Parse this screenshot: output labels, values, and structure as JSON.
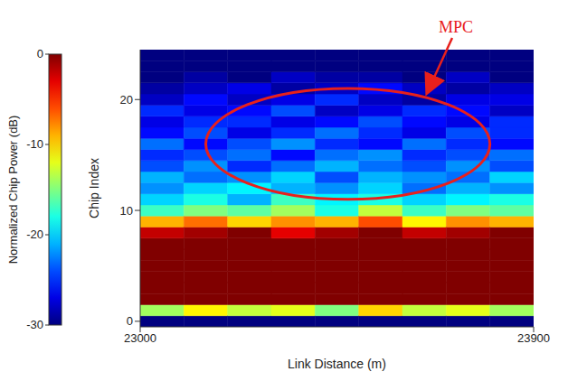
{
  "chart_data": {
    "type": "heatmap",
    "x_label": "Link Distance (m)",
    "y_label": "Chip Index",
    "xlim": [
      23000,
      23900
    ],
    "xticks": [
      23000,
      23900
    ],
    "ylim": [
      -0.5,
      24.5
    ],
    "yticks": [
      0,
      10,
      20
    ],
    "x": [
      23050,
      23150,
      23250,
      23350,
      23450,
      23550,
      23650,
      23750,
      23850
    ],
    "y": [
      0,
      1,
      2,
      3,
      4,
      5,
      6,
      7,
      8,
      9,
      10,
      11,
      12,
      13,
      14,
      15,
      16,
      17,
      18,
      19,
      20,
      21,
      22,
      23,
      24
    ],
    "values": [
      [
        -30,
        -14,
        0,
        0,
        0,
        0,
        0,
        0,
        -2,
        -9,
        -17,
        -20,
        -22,
        -21,
        -24,
        -25,
        -23,
        -26,
        -27,
        -25,
        -28,
        -29,
        -30,
        -30,
        -30
      ],
      [
        -30,
        -11,
        0,
        0,
        0,
        0,
        0,
        0,
        -1,
        -7,
        -15,
        -18,
        -20,
        -23,
        -22,
        -24,
        -26,
        -24,
        -25,
        -27,
        -26,
        -28,
        -29,
        -30,
        -30
      ],
      [
        -30,
        -13,
        0,
        0,
        0,
        0,
        0,
        0,
        0,
        -10,
        -16,
        -21,
        -19,
        -22,
        -25,
        -23,
        -24,
        -27,
        -25,
        -26,
        -28,
        -27,
        -30,
        -30,
        -30
      ],
      [
        -30,
        -12,
        0,
        0,
        0,
        0,
        0,
        0,
        -3,
        -8,
        -14,
        -17,
        -21,
        -20,
        -23,
        -26,
        -22,
        -25,
        -27,
        -24,
        -27,
        -29,
        -28,
        -30,
        -30
      ],
      [
        -30,
        -15,
        0,
        0,
        0,
        0,
        0,
        0,
        -1,
        -9,
        -18,
        -19,
        -22,
        -24,
        -21,
        -23,
        -25,
        -23,
        -26,
        -28,
        -25,
        -28,
        -29,
        -30,
        -30
      ],
      [
        -30,
        -10,
        0,
        0,
        0,
        0,
        0,
        0,
        0,
        -6,
        -13,
        -18,
        -20,
        -21,
        -23,
        -22,
        -26,
        -25,
        -24,
        -27,
        -28,
        -26,
        -29,
        -30,
        -30
      ],
      [
        -30,
        -13,
        0,
        0,
        0,
        0,
        0,
        0,
        -2,
        -11,
        -17,
        -20,
        -23,
        -22,
        -24,
        -25,
        -23,
        -27,
        -26,
        -25,
        -29,
        -28,
        -30,
        -30,
        -30
      ],
      [
        -30,
        -12,
        0,
        0,
        0,
        0,
        0,
        0,
        -1,
        -8,
        -15,
        -19,
        -21,
        -23,
        -22,
        -24,
        -25,
        -24,
        -27,
        -26,
        -27,
        -29,
        -28,
        -30,
        -30
      ],
      [
        -30,
        -14,
        0,
        0,
        0,
        0,
        0,
        0,
        0,
        -9,
        -16,
        -18,
        -22,
        -20,
        -24,
        -23,
        -26,
        -25,
        -25,
        -28,
        -27,
        -28,
        -30,
        -30,
        -30
      ]
    ],
    "colorbar": {
      "label": "Normalized Chip Power (dB)",
      "range": [
        -30,
        0
      ],
      "ticks": [
        0,
        -10,
        -20,
        -30
      ]
    },
    "annotations": [
      {
        "text": "MPC",
        "color": "#e8201c",
        "x": [
          23150,
          23800
        ],
        "y": [
          11,
          21
        ]
      }
    ]
  }
}
